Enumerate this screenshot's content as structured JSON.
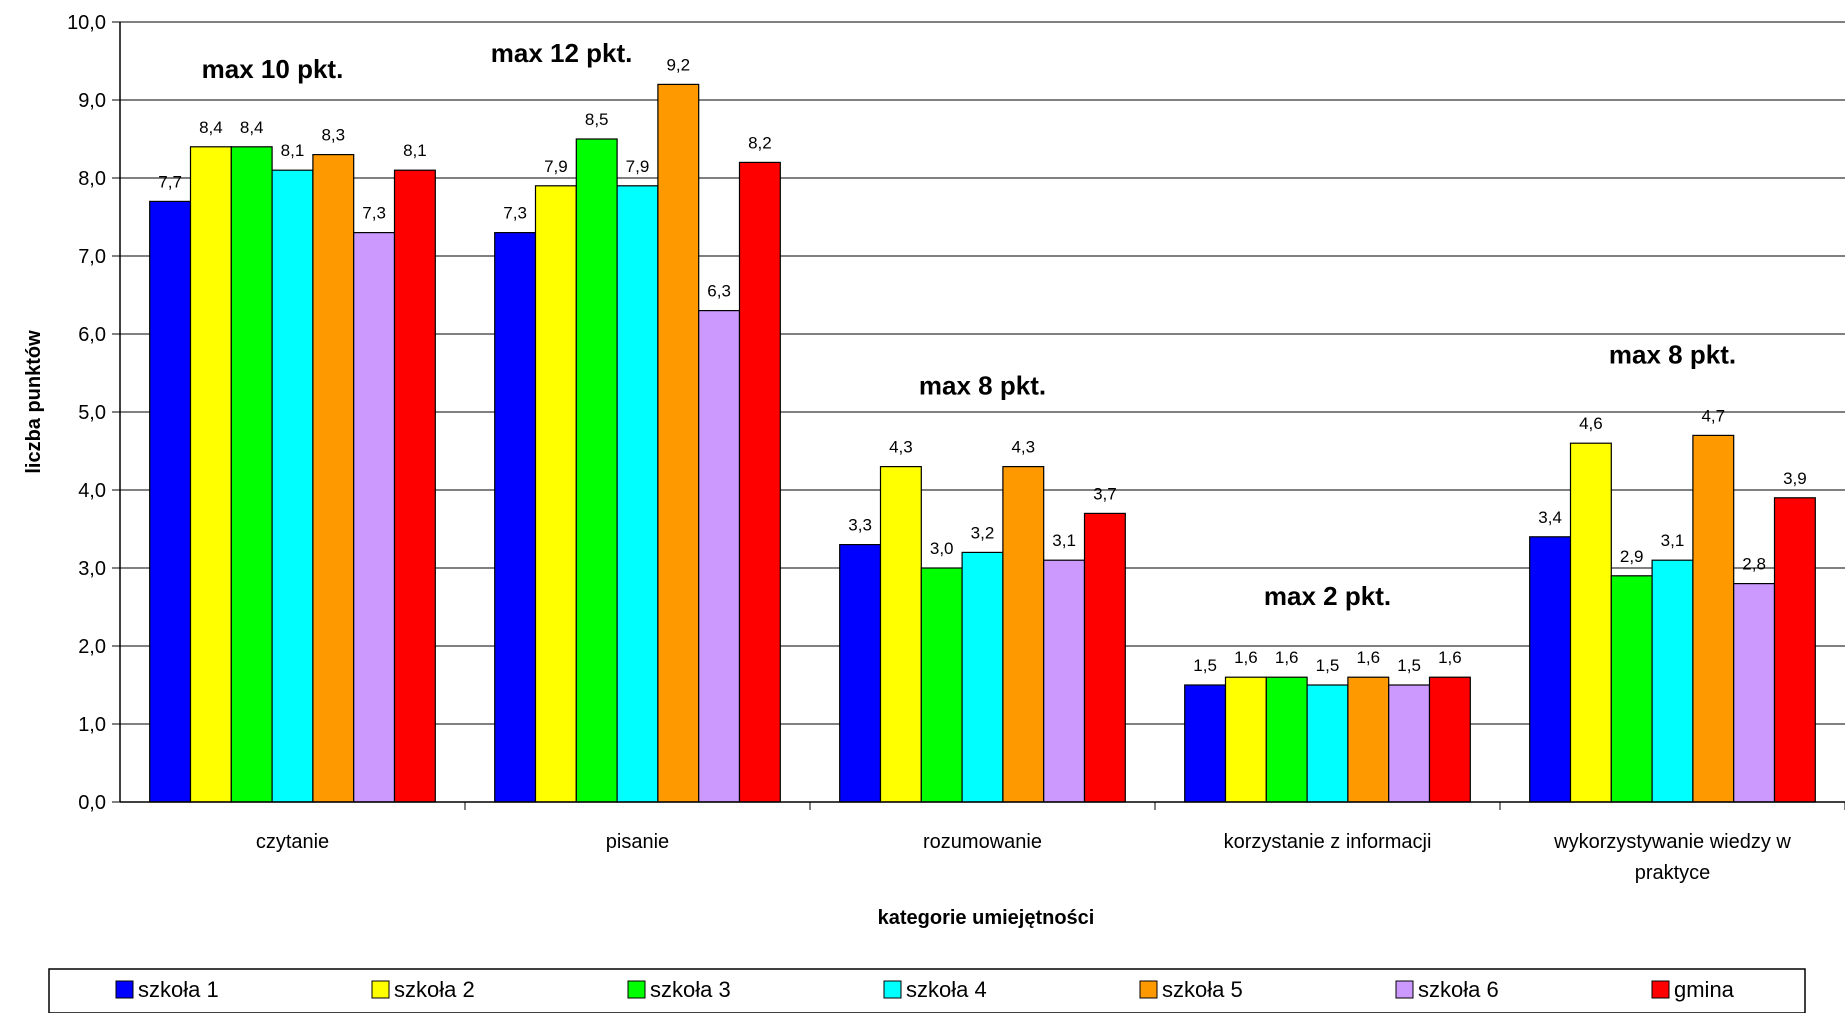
{
  "chart_data": {
    "type": "bar",
    "title": "",
    "xlabel": "kategorie umiejętności",
    "ylabel": "liczba punktów",
    "ylim": [
      0,
      10
    ],
    "ytick_step": 1,
    "ytick_labels": [
      "0,0",
      "1,0",
      "2,0",
      "3,0",
      "4,0",
      "5,0",
      "6,0",
      "7,0",
      "8,0",
      "9,0",
      "10,0"
    ],
    "grid": true,
    "legend_position": "bottom",
    "categories": [
      [
        "czytanie"
      ],
      [
        "pisanie"
      ],
      [
        "rozumowanie"
      ],
      [
        "korzystanie z informacji"
      ],
      [
        "wykorzystywanie wiedzy w",
        "praktyce"
      ]
    ],
    "series": [
      {
        "name": "szkoła 1",
        "color": "#0000FF",
        "values": [
          7.7,
          7.3,
          3.3,
          1.5,
          3.4
        ],
        "labels": [
          "7,7",
          "7,3",
          "3,3",
          "1,5",
          "3,4"
        ]
      },
      {
        "name": "szkoła 2",
        "color": "#FFFF00",
        "values": [
          8.4,
          7.9,
          4.3,
          1.6,
          4.6
        ],
        "labels": [
          "8,4",
          "7,9",
          "4,3",
          "1,6",
          "4,6"
        ]
      },
      {
        "name": "szkoła 3",
        "color": "#00FF00",
        "values": [
          8.4,
          8.5,
          3.0,
          1.6,
          2.9
        ],
        "labels": [
          "8,4",
          "8,5",
          "3,0",
          "1,6",
          "2,9"
        ]
      },
      {
        "name": "szkoła 4",
        "color": "#00FFFF",
        "values": [
          8.1,
          7.9,
          3.2,
          1.5,
          3.1
        ],
        "labels": [
          "8,1",
          "7,9",
          "3,2",
          "1,5",
          "3,1"
        ]
      },
      {
        "name": "szkoła 5",
        "color": "#FF9900",
        "values": [
          8.3,
          9.2,
          4.3,
          1.6,
          4.7
        ],
        "labels": [
          "8,3",
          "9,2",
          "4,3",
          "1,6",
          "4,7"
        ]
      },
      {
        "name": "szkoła 6",
        "color": "#CC99FF",
        "values": [
          7.3,
          6.3,
          3.1,
          1.5,
          2.8
        ],
        "labels": [
          "7,3",
          "6,3",
          "3,1",
          "1,5",
          "2,8"
        ]
      },
      {
        "name": "gmina",
        "color": "#FF0000",
        "values": [
          8.1,
          8.2,
          3.7,
          1.6,
          3.9
        ],
        "labels": [
          "8,1",
          "8,2",
          "3,7",
          "1,6",
          "3,9"
        ]
      }
    ],
    "annotations": [
      {
        "text": "max 10 pkt.",
        "category": 0
      },
      {
        "text": "max 12 pkt.",
        "category": 1
      },
      {
        "text": "max 8 pkt.",
        "category": 2
      },
      {
        "text": "max 2 pkt.",
        "category": 3
      },
      {
        "text": "max 8 pkt.",
        "category": 4
      }
    ]
  }
}
